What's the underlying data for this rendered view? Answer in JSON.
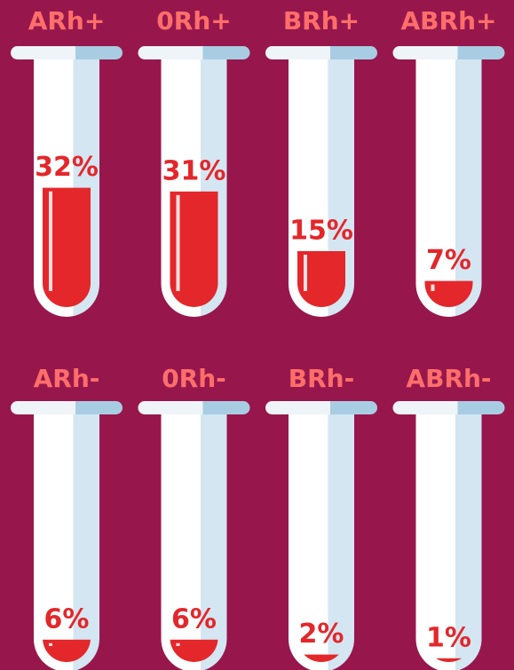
{
  "chart_data": {
    "type": "tubes",
    "categories": [
      "ARh+",
      "0Rh+",
      "BRh+",
      "ABRh+",
      "ARh-",
      "0Rh-",
      "BRh-",
      "ABRh-"
    ],
    "values": [
      32,
      31,
      15,
      7,
      6,
      6,
      2,
      1
    ],
    "value_labels": [
      "32%",
      "31%",
      "15%",
      "7%",
      "6%",
      "6%",
      "2%",
      "1%"
    ],
    "color": "#e3272b",
    "label_color": "#ff6e6a"
  }
}
